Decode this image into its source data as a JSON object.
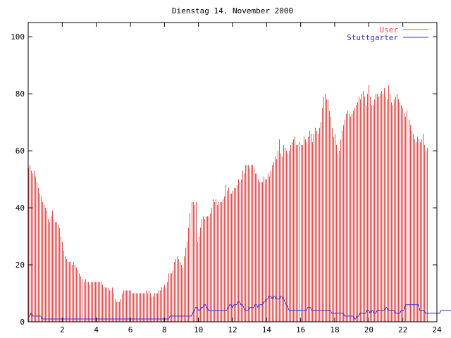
{
  "chart_data": {
    "type": "bar",
    "title": "Dienstag 14. November 2000",
    "xlabel": "",
    "ylabel": "",
    "xlim": [
      0,
      24
    ],
    "ylim": [
      0,
      105
    ],
    "x_ticks": [
      "2",
      "4",
      "6",
      "8",
      "10",
      "12",
      "14",
      "16",
      "18",
      "20",
      "22",
      "24"
    ],
    "y_ticks": [
      "0",
      "20",
      "40",
      "60",
      "80",
      "100"
    ],
    "grid": false,
    "legend": "top-right",
    "sample_interval_hours": 0.0833,
    "series": [
      {
        "name": "User",
        "style": "impulses",
        "color": "#e05050",
        "values": [
          54,
          55,
          53,
          52,
          53,
          51,
          49,
          47,
          45,
          44,
          42,
          41,
          40,
          39,
          36,
          35,
          37,
          39,
          36,
          35,
          35,
          34,
          33,
          30,
          28,
          25,
          23,
          22,
          21,
          21,
          21,
          20,
          21,
          20,
          19,
          18,
          17,
          16,
          15,
          14,
          15,
          14,
          14,
          13,
          14,
          14,
          14,
          14,
          14,
          14,
          14,
          14,
          13,
          12,
          12,
          12,
          12,
          11,
          11,
          12,
          10,
          8,
          7,
          7,
          7,
          8,
          10,
          11,
          11,
          11,
          11,
          11,
          11,
          10,
          10,
          10,
          10,
          10,
          10,
          10,
          10,
          10,
          10,
          11,
          10,
          11,
          10,
          9,
          9,
          10,
          10,
          10,
          11,
          11,
          12,
          12,
          13,
          12,
          14,
          17,
          17,
          17,
          18,
          21,
          22,
          23,
          22,
          21,
          20,
          19,
          23,
          26,
          28,
          33,
          38,
          42,
          42,
          41,
          42,
          28,
          30,
          33,
          36,
          37,
          36,
          37,
          37,
          37,
          38,
          40,
          43,
          42,
          43,
          41,
          42,
          42,
          42,
          43,
          44,
          48,
          46,
          47,
          45,
          45,
          46,
          47,
          47,
          48,
          50,
          49,
          50,
          53,
          52,
          55,
          55,
          55,
          54,
          55,
          55,
          54,
          52,
          52,
          50,
          49,
          49,
          49,
          51,
          50,
          50,
          52,
          51,
          53,
          55,
          56,
          58,
          57,
          60,
          64,
          59,
          58,
          62,
          61,
          60,
          59,
          60,
          62,
          63,
          64,
          65,
          62,
          62,
          63,
          62,
          62,
          65,
          64,
          63,
          65,
          67,
          66,
          63,
          66,
          68,
          67,
          66,
          68,
          70,
          75,
          79,
          80,
          78,
          78,
          74,
          72,
          68,
          65,
          66,
          62,
          59,
          60,
          64,
          67,
          69,
          71,
          73,
          74,
          73,
          72,
          73,
          74,
          75,
          76,
          77,
          79,
          78,
          80,
          81,
          79,
          76,
          80,
          83,
          79,
          76,
          76,
          78,
          80,
          80,
          79,
          80,
          81,
          80,
          82,
          79,
          78,
          83,
          80,
          77,
          76,
          78,
          79,
          80,
          78,
          77,
          76,
          75,
          73,
          72,
          74,
          71,
          69,
          67,
          66,
          64,
          63,
          65,
          64,
          63,
          64,
          66,
          62,
          60,
          61
        ],
        "values_note": ""
      },
      {
        "name": "Stuttgarter",
        "style": "lines",
        "color": "#3030d0",
        "values": [
          2,
          2,
          3,
          2,
          2,
          2,
          2,
          2,
          2,
          2,
          1,
          1,
          1,
          1,
          1,
          1,
          1,
          1,
          1,
          1,
          1,
          1,
          1,
          1,
          1,
          1,
          1,
          1,
          1,
          1,
          1,
          1,
          1,
          1,
          1,
          1,
          1,
          1,
          1,
          1,
          1,
          1,
          1,
          1,
          1,
          1,
          1,
          1,
          1,
          1,
          1,
          1,
          1,
          1,
          1,
          1,
          1,
          1,
          1,
          1,
          1,
          1,
          1,
          1,
          1,
          1,
          1,
          1,
          1,
          1,
          1,
          1,
          1,
          1,
          1,
          1,
          1,
          1,
          1,
          1,
          1,
          1,
          1,
          1,
          1,
          1,
          1,
          1,
          1,
          1,
          1,
          1,
          1,
          1,
          1,
          1,
          1,
          1,
          1,
          1,
          2,
          2,
          2,
          2,
          2,
          2,
          2,
          2,
          2,
          2,
          2,
          2,
          2,
          2,
          2,
          2,
          3,
          4,
          5,
          5,
          4,
          4,
          5,
          5,
          6,
          6,
          5,
          4,
          4,
          4,
          4,
          4,
          4,
          4,
          4,
          4,
          4,
          4,
          4,
          4,
          4,
          5,
          6,
          6,
          5,
          6,
          6,
          6,
          7,
          7,
          6,
          6,
          5,
          4,
          4,
          4,
          5,
          5,
          5,
          5,
          6,
          6,
          5,
          6,
          6,
          6,
          7,
          7,
          8,
          8,
          9,
          9,
          8,
          9,
          9,
          8,
          8,
          8,
          9,
          9,
          8,
          7,
          6,
          5,
          4,
          4,
          4,
          4,
          4,
          4,
          4,
          4,
          4,
          4,
          4,
          4,
          4,
          5,
          5,
          5,
          4,
          4,
          4,
          4,
          4,
          4,
          4,
          4,
          4,
          4,
          4,
          4,
          4,
          4,
          3,
          3,
          3,
          3,
          3,
          3,
          3,
          3,
          3,
          2,
          2,
          2,
          2,
          2,
          2,
          2,
          1,
          1,
          2,
          2,
          3,
          3,
          3,
          3,
          3,
          4,
          4,
          3,
          4,
          4,
          3,
          3,
          4,
          4,
          4,
          4,
          4,
          4,
          5,
          5,
          4,
          4,
          4,
          4,
          4,
          3,
          3,
          3,
          3,
          4,
          4,
          4,
          6,
          6,
          6,
          6,
          6,
          6,
          6,
          6,
          6,
          6,
          4,
          4,
          4,
          4,
          3,
          3,
          3,
          3,
          3,
          3,
          3,
          3,
          3,
          3,
          3,
          4,
          4,
          4,
          4,
          4,
          4,
          4,
          4,
          4,
          4,
          4,
          5,
          5
        ]
      }
    ]
  }
}
